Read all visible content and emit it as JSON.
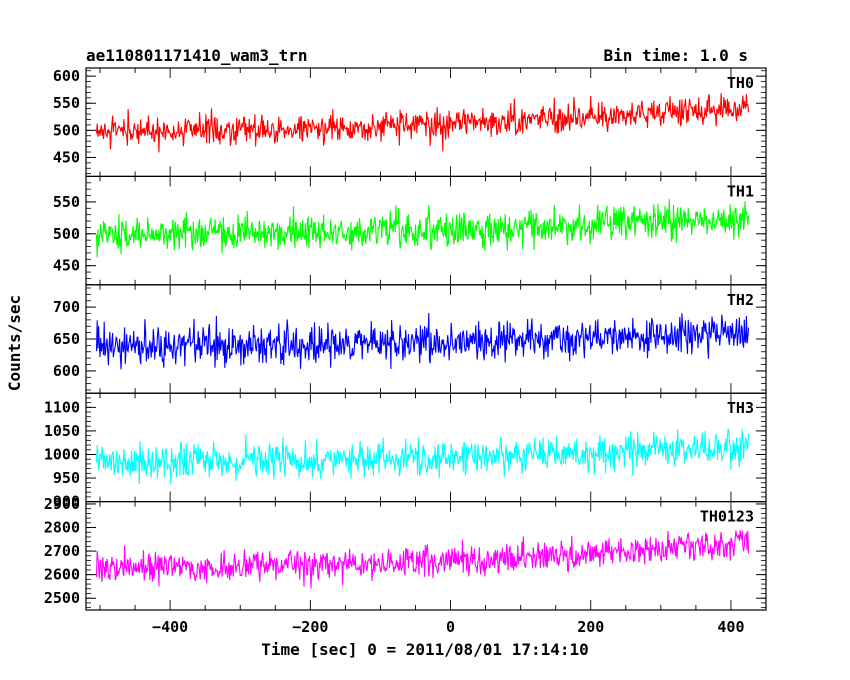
{
  "chart_data": {
    "type": "line",
    "header_left": "ae110801171410_wam3_trn",
    "header_right": "Bin time: 1.0 s",
    "xlabel": "Time [sec] 0 = 2011/08/01 17:14:10",
    "ylabel": "Counts/sec",
    "xlim": [
      -520,
      450
    ],
    "x_ticks": [
      -400,
      -200,
      0,
      200,
      400
    ],
    "x_tick_labels": [
      "−400",
      "−200",
      "0",
      "200",
      "400"
    ],
    "data_x_range": [
      -505,
      425
    ],
    "grid": false,
    "series": [
      {
        "name": "TH0",
        "color": "#ff0000",
        "ylim": [
          415,
          615
        ],
        "y_ticks": [
          450,
          500,
          550,
          600
        ],
        "baseline_start": 500,
        "baseline_end": 545,
        "noise_amplitude": 45
      },
      {
        "name": "TH1",
        "color": "#00ff00",
        "ylim": [
          420,
          590
        ],
        "y_ticks": [
          450,
          500,
          550
        ],
        "baseline_start": 500,
        "baseline_end": 525,
        "noise_amplitude": 45
      },
      {
        "name": "TH2",
        "color": "#0000ff",
        "ylim": [
          565,
          735
        ],
        "y_ticks": [
          600,
          650,
          700
        ],
        "baseline_start": 640,
        "baseline_end": 660,
        "noise_amplitude": 50
      },
      {
        "name": "TH3",
        "color": "#00ffff",
        "ylim": [
          900,
          1130
        ],
        "y_ticks": [
          900,
          950,
          1000,
          1050,
          1100
        ],
        "baseline_start": 985,
        "baseline_end": 1020,
        "noise_amplitude": 60
      },
      {
        "name": "TH0123",
        "color": "#ff00ff",
        "ylim": [
          2450,
          2910
        ],
        "y_ticks": [
          2500,
          2600,
          2700,
          2800,
          2900
        ],
        "baseline_start": 2630,
        "baseline_end": 2740,
        "noise_amplitude": 110
      }
    ]
  }
}
